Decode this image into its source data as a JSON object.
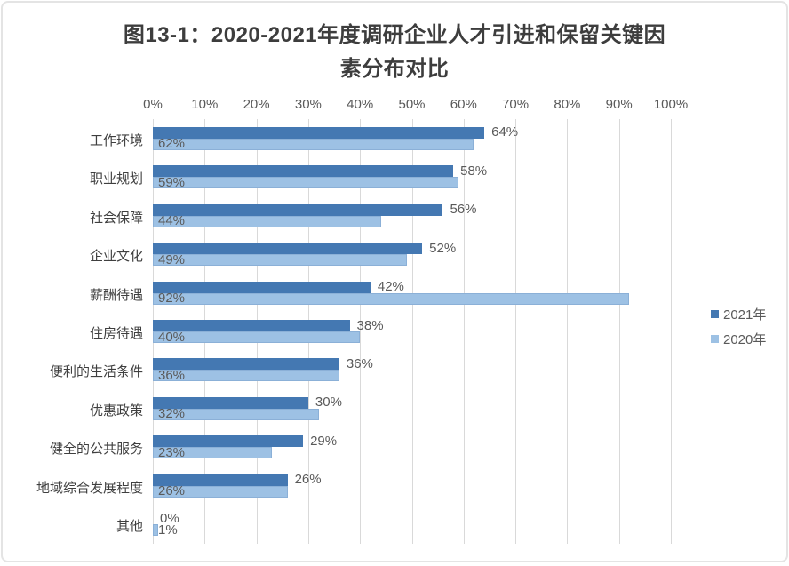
{
  "chart_data": {
    "type": "bar",
    "orientation": "horizontal",
    "title_lines": [
      "图13-1：2020-2021年度调研企业人才引进和保留关键因",
      "素分布对比"
    ],
    "categories": [
      "工作环境",
      "职业规划",
      "社会保障",
      "企业文化",
      "薪酬待遇",
      "住房待遇",
      "便利的生活条件",
      "优惠政策",
      "健全的公共服务",
      "地域综合发展程度",
      "其他"
    ],
    "series": [
      {
        "name": "2021年",
        "color": "#4478B2",
        "values": [
          64,
          58,
          56,
          52,
          42,
          38,
          36,
          30,
          29,
          26,
          0
        ]
      },
      {
        "name": "2020年",
        "color": "#9DC1E4",
        "values": [
          62,
          59,
          44,
          49,
          92,
          40,
          36,
          32,
          23,
          26,
          1
        ]
      }
    ],
    "x_ticks": [
      "0%",
      "10%",
      "20%",
      "30%",
      "40%",
      "50%",
      "60%",
      "70%",
      "80%",
      "90%",
      "100%"
    ],
    "xlim": [
      0,
      100
    ],
    "grid": true,
    "legend_position": "right",
    "value_label_suffix": "%"
  },
  "colors": {
    "grid": "#d9d9d9",
    "tick_text": "#595959",
    "category_text": "#3f3f3f",
    "value_text": "#595959",
    "title_text": "#3d3d3d",
    "frame_border": "#e4e4e4",
    "background": "#ffffff"
  }
}
